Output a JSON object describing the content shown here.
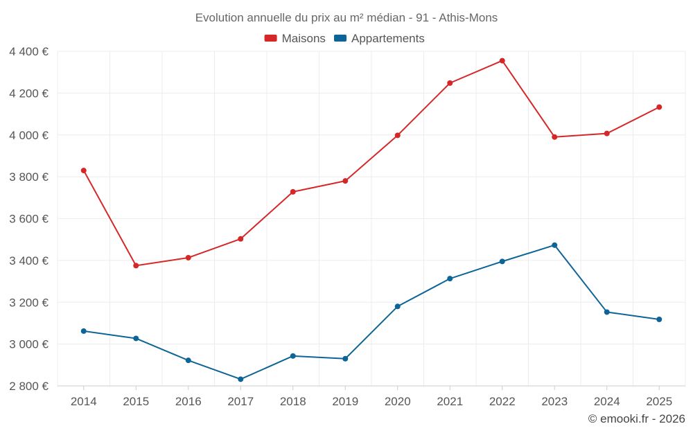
{
  "chart_data": {
    "type": "line",
    "title": "Evolution annuelle du prix au m² médian - 91 - Athis-Mons",
    "categories": [
      "2014",
      "2015",
      "2016",
      "2017",
      "2018",
      "2019",
      "2020",
      "2021",
      "2022",
      "2023",
      "2024",
      "2025"
    ],
    "series": [
      {
        "name": "Maisons",
        "color": "#d62728",
        "values": [
          3830,
          3375,
          3413,
          3503,
          3728,
          3780,
          3998,
          4248,
          4355,
          3990,
          4007,
          4133
        ]
      },
      {
        "name": "Appartements",
        "color": "#0d6496",
        "values": [
          3062,
          3027,
          2922,
          2832,
          2943,
          2930,
          3180,
          3313,
          3395,
          3473,
          3153,
          3118
        ]
      }
    ],
    "ylim": [
      2800,
      4400
    ],
    "yticks": [
      2800,
      3000,
      3200,
      3400,
      3600,
      3800,
      4000,
      4200,
      4400
    ],
    "ytick_labels": [
      "2 800 €",
      "3 000 €",
      "3 200 €",
      "3 400 €",
      "3 600 €",
      "3 800 €",
      "4 000 €",
      "4 200 €",
      "4 400 €"
    ],
    "xlabel": "",
    "ylabel": "",
    "grid": true,
    "legend_position": "top-center"
  },
  "credit": "© emooki.fr - 2026"
}
